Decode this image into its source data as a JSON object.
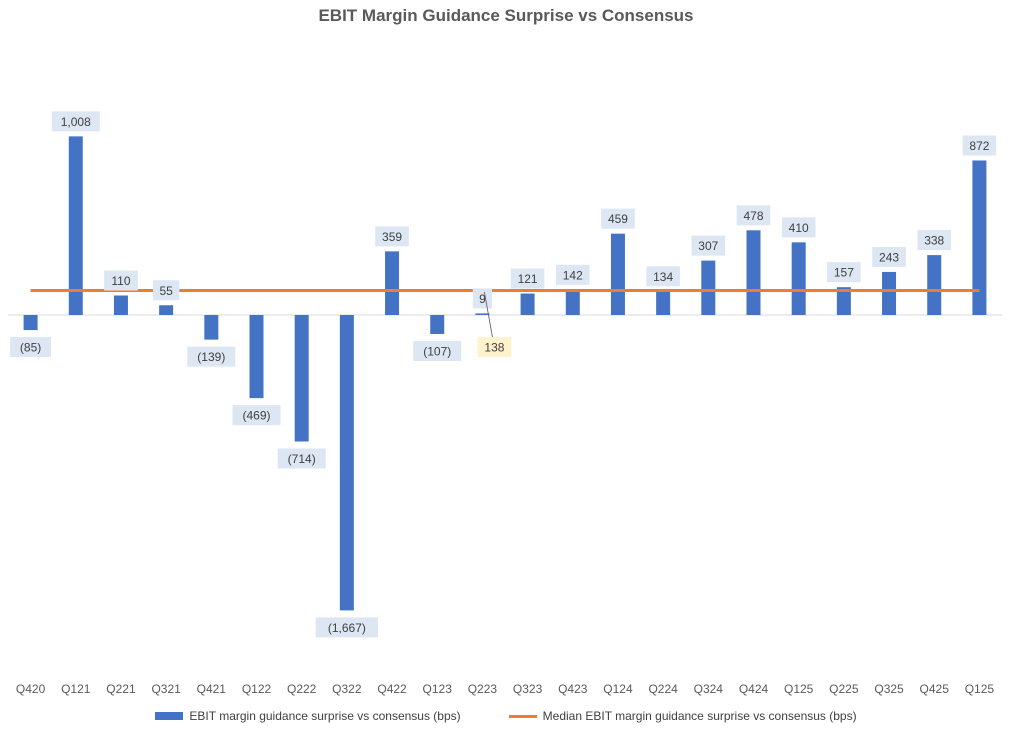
{
  "chart_data": {
    "type": "bar",
    "title": "EBIT Margin Guidance Surprise vs Consensus",
    "categories": [
      "Q420",
      "Q121",
      "Q221",
      "Q321",
      "Q421",
      "Q122",
      "Q222",
      "Q322",
      "Q422",
      "Q123",
      "Q223",
      "Q323",
      "Q423",
      "Q124",
      "Q224",
      "Q324",
      "Q424",
      "Q125",
      "Q225",
      "Q325",
      "Q425",
      "Q125"
    ],
    "series": [
      {
        "name": "EBIT margin guidance surprise vs consensus (bps)",
        "type": "bar",
        "color": "#4472c4",
        "values": [
          -85,
          1008,
          110,
          55,
          -139,
          -469,
          -714,
          -1667,
          359,
          -107,
          9,
          121,
          142,
          459,
          134,
          307,
          478,
          410,
          157,
          243,
          338,
          872
        ],
        "labels": [
          "(85)",
          "1,008",
          "110",
          "55",
          "(139)",
          "(469)",
          "(714)",
          "(1,667)",
          "359",
          "(107)",
          "9",
          "121",
          "142",
          "459",
          "134",
          "307",
          "478",
          "410",
          "157",
          "243",
          "338",
          "872"
        ]
      },
      {
        "name": "Median EBIT margin guidance surprise vs consensus (bps)",
        "type": "line",
        "color": "#ed7d31",
        "value": 138
      }
    ],
    "median_label": "138",
    "ylim": [
      -2000,
      1300
    ],
    "xlabel": "",
    "ylabel": "",
    "grid": false,
    "legend": "bottom"
  }
}
